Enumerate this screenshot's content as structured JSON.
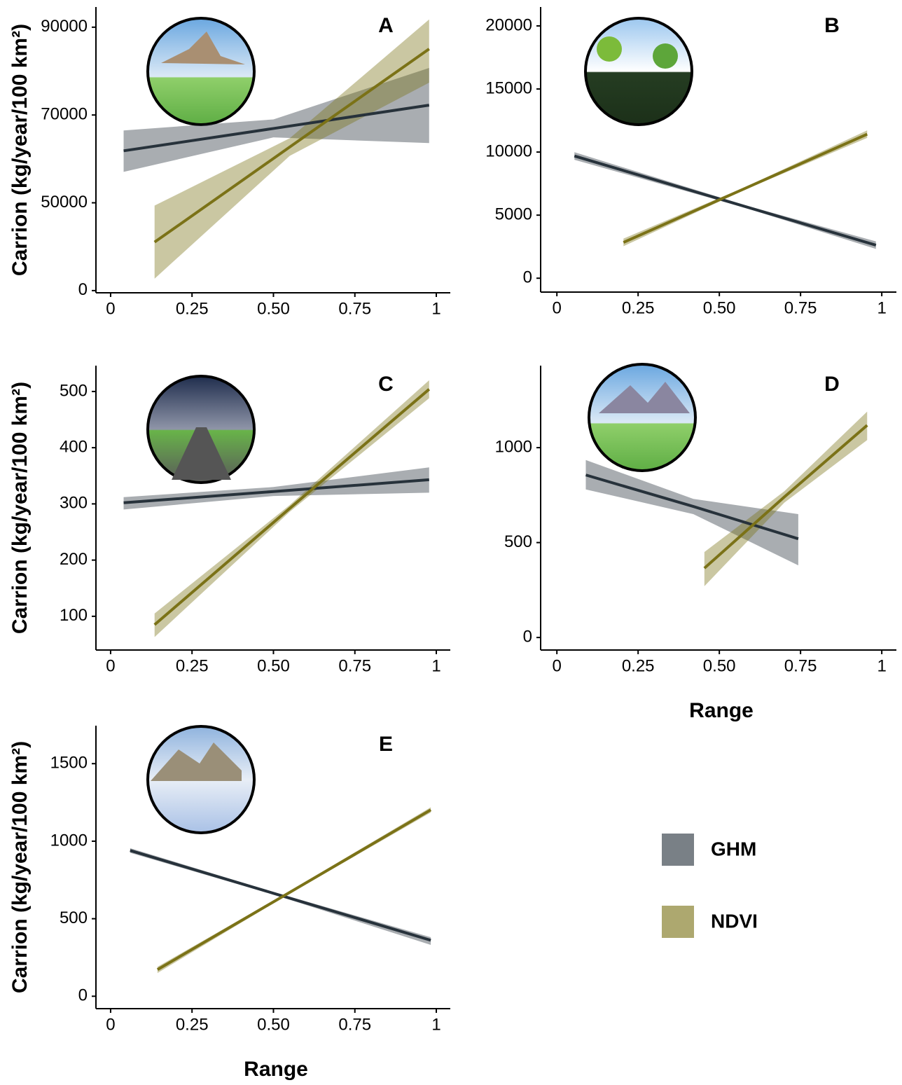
{
  "chart_data": [
    {
      "type": "line",
      "label": "A",
      "ylabel": "Carrion (kg/year/100 km²)",
      "xlim": [
        -0.045,
        1.043
      ],
      "ylim": [
        29500,
        94600
      ],
      "xticks": [
        0,
        0.25,
        {
          "value": 0.5,
          "label": "0.50"
        },
        0.75,
        1
      ],
      "yticks": [
        {
          "value": 30000,
          "label": "0"
        },
        50000,
        70000,
        90000
      ],
      "series": [
        {
          "name": "GHM",
          "color": "#27323b",
          "x": [
            0.04,
            0.5,
            0.978
          ],
          "values": [
            61840,
            66930,
            72240
          ],
          "lower": [
            57040,
            64900,
            63600
          ],
          "upper": [
            66480,
            69000,
            80720
          ]
        },
        {
          "name": "NDVI",
          "color": "#7b7217",
          "x": [
            0.135,
            0.55,
            0.978
          ],
          "values": [
            41040,
            62700,
            85040
          ],
          "lower": [
            32720,
            60700,
            77360
          ],
          "upper": [
            49360,
            64700,
            91760
          ]
        }
      ]
    },
    {
      "type": "line",
      "label": "B",
      "xlim": [
        -0.05,
        1.045
      ],
      "ylim": [
        -1100,
        21500
      ],
      "xticks": [
        0,
        0.25,
        {
          "value": 0.5,
          "label": "0.50"
        },
        0.75,
        1
      ],
      "yticks": [
        0,
        5000,
        10000,
        15000,
        20000
      ],
      "series": [
        {
          "color": "#27323b",
          "x": [
            0.054,
            0.58,
            0.982
          ],
          "values": [
            9690,
            5680,
            2620
          ],
          "lower": [
            9390,
            5580,
            2320
          ],
          "upper": [
            9990,
            5780,
            2920
          ]
        },
        {
          "color": "#7b7217",
          "x": [
            0.205,
            0.58,
            0.955
          ],
          "values": [
            2840,
            7130,
            11420
          ],
          "lower": [
            2540,
            7030,
            11120
          ],
          "upper": [
            3140,
            7230,
            11720
          ]
        }
      ]
    },
    {
      "type": "line",
      "label": "C",
      "ylabel": "Carrion (kg/year/100 km²)",
      "xlim": [
        -0.045,
        1.043
      ],
      "ylim": [
        40,
        546
      ],
      "xticks": [
        0,
        0.25,
        {
          "value": 0.5,
          "label": "0.50"
        },
        0.75,
        1
      ],
      "yticks": [
        100,
        200,
        300,
        400,
        500
      ],
      "series": [
        {
          "color": "#27323b",
          "x": [
            0.04,
            0.5,
            0.978
          ],
          "values": [
            302,
            322,
            343
          ],
          "lower": [
            290,
            314,
            320
          ],
          "upper": [
            312,
            330,
            365
          ]
        },
        {
          "color": "#7b7217",
          "x": [
            0.135,
            0.55,
            0.978
          ],
          "values": [
            85,
            292,
            504
          ],
          "lower": [
            63,
            286,
            488
          ],
          "upper": [
            105,
            298,
            520
          ]
        }
      ]
    },
    {
      "type": "line",
      "label": "D",
      "xlabel": "Range",
      "xlim": [
        -0.05,
        1.045
      ],
      "ylim": [
        -66,
        1432
      ],
      "xticks": [
        0,
        0.25,
        {
          "value": 0.5,
          "label": "0.50"
        },
        0.75,
        1
      ],
      "yticks": [
        0,
        500,
        1000
      ],
      "series": [
        {
          "color": "#27323b",
          "x": [
            0.089,
            0.42,
            0.743
          ],
          "values": [
            856,
            690,
            520
          ],
          "lower": [
            780,
            650,
            380
          ],
          "upper": [
            935,
            730,
            650
          ]
        },
        {
          "color": "#7b7217",
          "x": [
            0.454,
            0.7,
            0.955
          ],
          "values": [
            365,
            740,
            1118
          ],
          "lower": [
            270,
            710,
            1040
          ],
          "upper": [
            450,
            770,
            1190
          ]
        }
      ]
    },
    {
      "type": "line",
      "label": "E",
      "ylabel": "Carrion (kg/year/100 km²)",
      "xlabel": "Range",
      "xlim": [
        -0.045,
        1.043
      ],
      "ylim": [
        -80,
        1745
      ],
      "xticks": [
        0,
        0.25,
        {
          "value": 0.5,
          "label": "0.50"
        },
        0.75,
        1
      ],
      "yticks": [
        0,
        500,
        1000,
        1500
      ],
      "series": [
        {
          "color": "#27323b",
          "x": [
            0.06,
            0.5,
            0.983
          ],
          "values": [
            940,
            664,
            361
          ],
          "lower": [
            925,
            656,
            331
          ],
          "upper": [
            955,
            672,
            381
          ]
        },
        {
          "color": "#7b7217",
          "x": [
            0.144,
            0.55,
            0.983
          ],
          "values": [
            172,
            670,
            1202
          ],
          "lower": [
            150,
            662,
            1185
          ],
          "upper": [
            190,
            678,
            1219
          ]
        }
      ]
    }
  ]
}
